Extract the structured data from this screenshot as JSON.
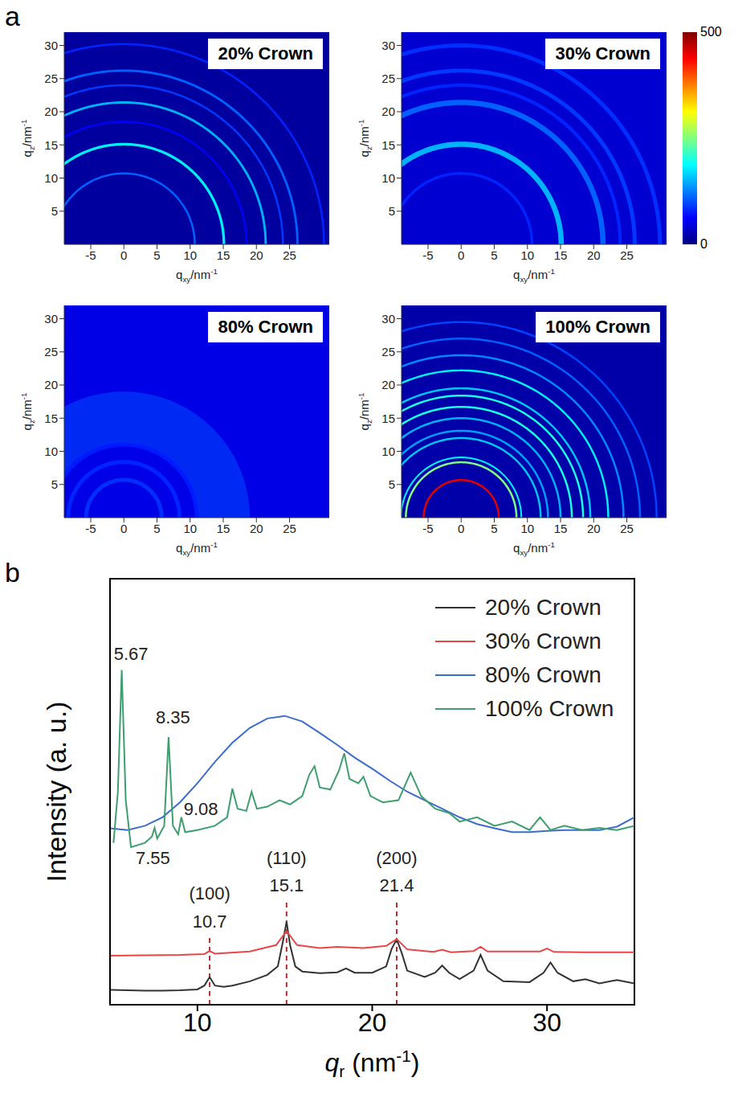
{
  "panel_labels": [
    "a",
    "b"
  ],
  "colorbar": {
    "range": [
      0,
      500
    ],
    "ticks": [
      0,
      500
    ]
  },
  "chart_data": [
    {
      "type": "rings",
      "title": "20% Crown",
      "xlabel": [
        {
          "text": "q"
        },
        {
          "text": "xy",
          "sub": true
        },
        {
          "text": "/nm"
        },
        {
          "text": "-1",
          "sup": true
        }
      ],
      "ylabel": [
        {
          "text": "q"
        },
        {
          "text": "z",
          "sub": true
        },
        {
          "text": "/nm"
        },
        {
          "text": "-1",
          "sup": true
        }
      ],
      "xlim": [
        -9,
        31
      ],
      "ylim": [
        0,
        32
      ],
      "xticks": [
        -5,
        0,
        5,
        10,
        15,
        20,
        25
      ],
      "yticks": [
        5,
        10,
        15,
        20,
        25,
        30
      ],
      "background": 15,
      "rings": [
        {
          "q": 10.7,
          "intensity": 110,
          "fwhm": 0.3
        },
        {
          "q": 15.1,
          "intensity": 180,
          "fwhm": 0.4
        },
        {
          "q": 18.5,
          "intensity": 60,
          "fwhm": 0.3
        },
        {
          "q": 21.4,
          "intensity": 150,
          "fwhm": 0.35
        },
        {
          "q": 24,
          "intensity": 90,
          "fwhm": 0.3
        },
        {
          "q": 26.2,
          "intensity": 110,
          "fwhm": 0.35
        },
        {
          "q": 30.2,
          "intensity": 80,
          "fwhm": 0.3
        }
      ]
    },
    {
      "type": "rings",
      "title": "30% Crown",
      "xlabel": [
        {
          "text": "q"
        },
        {
          "text": "xy",
          "sub": true
        },
        {
          "text": "/nm"
        },
        {
          "text": "-1",
          "sup": true
        }
      ],
      "ylabel": [
        {
          "text": "q"
        },
        {
          "text": "z",
          "sub": true
        },
        {
          "text": "/nm"
        },
        {
          "text": "-1",
          "sup": true
        }
      ],
      "xlim": [
        -9,
        31
      ],
      "ylim": [
        0,
        32
      ],
      "xticks": [
        -5,
        0,
        5,
        10,
        15,
        20,
        25
      ],
      "yticks": [
        5,
        10,
        15,
        20,
        25,
        30
      ],
      "background": 40,
      "rings": [
        {
          "q": 15.1,
          "intensity": 150,
          "fwhm": 0.8
        },
        {
          "q": 10.7,
          "intensity": 80,
          "fwhm": 0.4
        },
        {
          "q": 21.4,
          "intensity": 110,
          "fwhm": 0.8
        },
        {
          "q": 24,
          "intensity": 80,
          "fwhm": 0.5
        },
        {
          "q": 26.2,
          "intensity": 90,
          "fwhm": 0.6
        },
        {
          "q": 30,
          "intensity": 85,
          "fwhm": 0.6
        }
      ]
    },
    {
      "type": "rings",
      "title": "80% Crown",
      "xlabel": [
        {
          "text": "q"
        },
        {
          "text": "xy",
          "sub": true
        },
        {
          "text": "/nm"
        },
        {
          "text": "-1",
          "sup": true
        }
      ],
      "ylabel": [
        {
          "text": "q"
        },
        {
          "text": "z",
          "sub": true
        },
        {
          "text": "/nm"
        },
        {
          "text": "-1",
          "sup": true
        }
      ],
      "xlim": [
        -9,
        31
      ],
      "ylim": [
        0,
        32
      ],
      "xticks": [
        -5,
        0,
        5,
        10,
        15,
        20,
        25
      ],
      "yticks": [
        5,
        10,
        15,
        20,
        25,
        30
      ],
      "background": 50,
      "rings": [
        {
          "q": 15,
          "intensity": 100,
          "fwhm": 8
        },
        {
          "q": 5.7,
          "intensity": 85,
          "fwhm": 0.6
        },
        {
          "q": 8.4,
          "intensity": 80,
          "fwhm": 0.6
        },
        {
          "q": 11,
          "intensity": 75,
          "fwhm": 0.6
        }
      ]
    },
    {
      "type": "rings",
      "title": "100% Crown",
      "xlabel": [
        {
          "text": "q"
        },
        {
          "text": "xy",
          "sub": true
        },
        {
          "text": "/nm"
        },
        {
          "text": "-1",
          "sup": true
        }
      ],
      "ylabel": [
        {
          "text": "q"
        },
        {
          "text": "z",
          "sub": true
        },
        {
          "text": "/nm"
        },
        {
          "text": "-1",
          "sup": true
        }
      ],
      "xlim": [
        -9,
        31
      ],
      "ylim": [
        0,
        32
      ],
      "xticks": [
        -5,
        0,
        5,
        10,
        15,
        20,
        25
      ],
      "yticks": [
        5,
        10,
        15,
        20,
        25,
        30
      ],
      "background": 20,
      "rings": [
        {
          "q": 5.67,
          "intensity": 450,
          "fwhm": 0.3
        },
        {
          "q": 8.35,
          "intensity": 250,
          "fwhm": 0.3
        },
        {
          "q": 9.08,
          "intensity": 180,
          "fwhm": 0.25
        },
        {
          "q": 12,
          "intensity": 160,
          "fwhm": 0.3
        },
        {
          "q": 13.1,
          "intensity": 140,
          "fwhm": 0.3
        },
        {
          "q": 15,
          "intensity": 150,
          "fwhm": 0.3
        },
        {
          "q": 16.7,
          "intensity": 200,
          "fwhm": 0.3
        },
        {
          "q": 18.4,
          "intensity": 200,
          "fwhm": 0.3
        },
        {
          "q": 19.5,
          "intensity": 160,
          "fwhm": 0.3
        },
        {
          "q": 22.2,
          "intensity": 180,
          "fwhm": 0.3
        },
        {
          "q": 24.5,
          "intensity": 130,
          "fwhm": 0.3
        },
        {
          "q": 27,
          "intensity": 110,
          "fwhm": 0.3
        },
        {
          "q": 29.5,
          "intensity": 95,
          "fwhm": 0.3
        }
      ]
    },
    {
      "type": "line",
      "xlabel": [
        {
          "text": "q",
          "italic": true
        },
        {
          "text": "r",
          "sub": true
        },
        {
          "text": " (nm"
        },
        {
          "text": "-1",
          "sup": true
        },
        {
          "text": ")"
        }
      ],
      "ylabel": "Intensity (a. u.)",
      "xlim": [
        5,
        35
      ],
      "xticks": [
        10,
        20,
        30
      ],
      "ylim": [
        0,
        100
      ],
      "tick_labels": "x",
      "legend": "top-right",
      "series": [
        {
          "name": "20% Crown",
          "color": "#333333",
          "x": [
            5,
            6,
            7,
            8,
            9,
            10,
            10.4,
            10.7,
            11,
            11.5,
            12,
            13,
            14,
            14.6,
            14.9,
            15.1,
            15.3,
            15.6,
            16,
            17,
            18,
            18.5,
            19,
            20,
            20.8,
            21.1,
            21.4,
            21.7,
            22,
            23,
            23.6,
            24,
            24.4,
            25,
            25.8,
            26.2,
            26.6,
            27.5,
            29,
            29.8,
            30.2,
            30.6,
            31.5,
            32.2,
            33,
            34,
            35
          ],
          "values": [
            3.5,
            3.4,
            3.3,
            3.3,
            3.4,
            3.6,
            4.5,
            6.5,
            4.5,
            4.2,
            4.5,
            5.5,
            7,
            9,
            15,
            19.5,
            14,
            9,
            7.8,
            7.4,
            7.6,
            8.5,
            7.5,
            7.5,
            9,
            13,
            15.4,
            12,
            8,
            6.5,
            7.5,
            9.2,
            7.5,
            6,
            8,
            11.7,
            8,
            5.5,
            5.3,
            7.5,
            9.9,
            7.5,
            5.5,
            6,
            5,
            5.8,
            5
          ]
        },
        {
          "name": "30% Crown",
          "color": "#e8474a",
          "x": [
            5,
            7,
            9,
            10.4,
            10.7,
            11,
            13,
            14.5,
            15.1,
            15.7,
            17,
            18,
            19.5,
            20.8,
            21.4,
            22,
            23.5,
            24,
            24.5,
            25.8,
            26.2,
            26.6,
            29.6,
            30,
            30.4,
            32,
            35
          ],
          "values": [
            11.5,
            11.6,
            11.7,
            11.9,
            12.6,
            12,
            12.5,
            14,
            17.3,
            14,
            13.3,
            13.6,
            13.3,
            13.8,
            15.4,
            13,
            12.4,
            12.9,
            12.3,
            12.6,
            13.6,
            12.5,
            12.5,
            13.2,
            12.4,
            12.3,
            12.3
          ]
        },
        {
          "name": "80% Crown",
          "color": "#3c6ccc",
          "x": [
            5,
            6,
            7,
            8,
            9,
            10,
            11,
            12,
            13,
            14,
            15,
            16,
            17,
            18,
            19,
            20,
            21,
            22,
            23,
            24,
            25,
            26,
            27,
            28,
            29,
            30,
            31,
            32,
            33,
            34,
            35
          ],
          "values": [
            41.4,
            41,
            42,
            44,
            47.5,
            52,
            57,
            61.5,
            65,
            67.2,
            67.8,
            66.5,
            63.8,
            61,
            58,
            55.4,
            52.6,
            50,
            48,
            46,
            44,
            42.4,
            41.4,
            40.5,
            40.5,
            40.8,
            41,
            41,
            41,
            41.8,
            44
          ]
        },
        {
          "name": "100% Crown",
          "color": "#3e9e6e",
          "x": [
            5.2,
            5.45,
            5.67,
            5.9,
            6.2,
            7,
            7.4,
            7.55,
            7.7,
            8.1,
            8.35,
            8.6,
            8.9,
            9.08,
            9.3,
            10,
            11,
            11.7,
            12,
            12.3,
            12.8,
            13.1,
            13.4,
            14,
            14.7,
            15,
            15.3,
            16,
            16.4,
            16.7,
            17,
            17.6,
            18.1,
            18.4,
            18.7,
            19.2,
            19.5,
            19.9,
            20.6,
            21.5,
            22.2,
            22.8,
            23.6,
            24.4,
            25,
            26,
            27,
            28,
            29,
            29.6,
            30.2,
            31,
            32,
            33,
            34,
            35
          ],
          "values": [
            38,
            50,
            78.6,
            48,
            37,
            38,
            39.5,
            41.5,
            39,
            42,
            62.8,
            42,
            40,
            44,
            40.5,
            41,
            42,
            44,
            50.7,
            46,
            45.5,
            50,
            46,
            46.5,
            48,
            47.5,
            47,
            49,
            54,
            56,
            51,
            50.5,
            55,
            59,
            53,
            52,
            53.5,
            49,
            47.5,
            48,
            54.5,
            49,
            46,
            45,
            43,
            44,
            42,
            43,
            41,
            44,
            41,
            42,
            41,
            41.5,
            41,
            42
          ]
        }
      ],
      "annotations": [
        {
          "text": "5.67",
          "x": 6.2,
          "y": 81
        },
        {
          "text": "8.35",
          "x": 8.6,
          "y": 66
        },
        {
          "text": "9.08",
          "x": 10.2,
          "y": 44.5
        },
        {
          "text": "7.55",
          "x": 7.45,
          "y": 33
        },
        {
          "text": "(100)",
          "x": 10.7,
          "y": 24.7
        },
        {
          "text": "10.7",
          "x": 10.7,
          "y": 18.2
        },
        {
          "text": "(110)",
          "x": 15.1,
          "y": 33
        },
        {
          "text": "15.1",
          "x": 15.1,
          "y": 26.6
        },
        {
          "text": "(200)",
          "x": 21.4,
          "y": 33
        },
        {
          "text": "21.4",
          "x": 21.4,
          "y": 26.6
        }
      ],
      "guides": [
        {
          "x": 10.7,
          "y_range": [
            0,
            16.5
          ],
          "color": "#b03030",
          "line_style": "dashed"
        },
        {
          "x": 15.1,
          "y_range": [
            0,
            24.5
          ],
          "color": "#b03030",
          "line_style": "dashed"
        },
        {
          "x": 21.4,
          "y_range": [
            0,
            24.5
          ],
          "color": "#b03030",
          "line_style": "dashed"
        }
      ]
    }
  ]
}
